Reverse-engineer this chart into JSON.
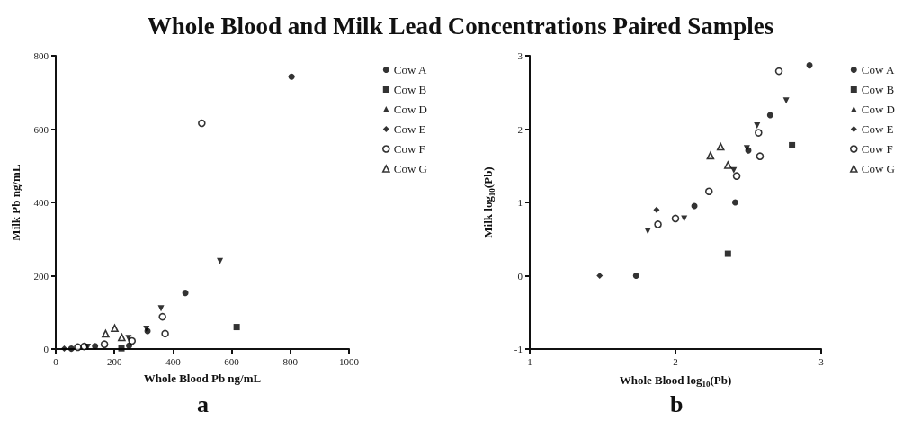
{
  "chart_data": [
    {
      "type": "scatter",
      "title": "Whole Blood and Milk Lead Concentrations Paired Samples",
      "xlabel": "Whole Blood Pb ng/mL",
      "ylabel": "Milk Pb ng/mL",
      "annotations": [
        "a"
      ],
      "xlim": [
        0,
        1000
      ],
      "xticks": [
        0,
        200,
        400,
        600,
        800,
        1000
      ],
      "ylim": [
        0,
        800
      ],
      "yticks": [
        0,
        200,
        400,
        600,
        800
      ],
      "grid": false,
      "legend": "right",
      "series": [
        {
          "name": "Cow A",
          "color": "#000000",
          "marker": "circle",
          "x": [
            804,
            442,
            313,
            250,
            134,
            53
          ],
          "values": [
            743,
            153,
            49,
            9,
            8,
            1
          ]
        },
        {
          "name": "Cow B",
          "color": "#000000",
          "marker": "square",
          "x": [
            617,
            224
          ],
          "values": [
            60,
            2
          ]
        },
        {
          "name": "Cow D",
          "color": "#000000",
          "marker": "triangle-down",
          "x": [
            560,
            359,
            309,
            248,
            109
          ],
          "values": [
            240,
            111,
            55,
            30,
            6
          ]
        },
        {
          "name": "Cow E",
          "color": "#000000",
          "marker": "diamond",
          "x": [
            29
          ],
          "values": [
            1
          ]
        },
        {
          "name": "Cow F",
          "color": "#000000",
          "marker": "circle-open",
          "x": [
            498,
            364,
            373,
            260,
            166,
            97,
            75
          ],
          "values": [
            616,
            88,
            42,
            22,
            13,
            7,
            5
          ]
        },
        {
          "name": "Cow G",
          "color": "#000000",
          "marker": "triangle-open",
          "x": [
            170,
            201,
            225
          ],
          "values": [
            42,
            57,
            32
          ]
        }
      ]
    },
    {
      "type": "scatter",
      "xlabel": "Whole Blood log$_{10}$(Pb)",
      "ylabel": "Milk log$_{10}$(Pb)",
      "annotations": [
        "b"
      ],
      "xlim": [
        1,
        3
      ],
      "xticks": [
        1,
        2,
        3
      ],
      "ylim": [
        -1,
        3
      ],
      "yticks": [
        -1,
        0,
        1,
        2,
        3
      ],
      "grid": false,
      "legend": "right",
      "series": [
        {
          "name": "Cow A",
          "color": "#000000",
          "marker": "circle",
          "x": [
            1.73,
            2.13,
            2.41,
            2.5,
            2.65,
            2.92
          ],
          "values": [
            0,
            0.95,
            1.0,
            1.71,
            2.19,
            2.87
          ]
        },
        {
          "name": "Cow B",
          "color": "#000000",
          "marker": "square",
          "x": [
            2.36,
            2.8
          ],
          "values": [
            0.3,
            1.78
          ]
        },
        {
          "name": "Cow D",
          "color": "#000000",
          "marker": "triangle-down",
          "x": [
            1.81,
            2.06,
            2.4,
            2.49,
            2.56,
            2.76
          ],
          "values": [
            0.61,
            0.78,
            1.44,
            1.74,
            2.05,
            2.39
          ]
        },
        {
          "name": "Cow E",
          "color": "#000000",
          "marker": "diamond",
          "x": [
            1.48,
            1.87
          ],
          "values": [
            0,
            0.9
          ]
        },
        {
          "name": "Cow F",
          "color": "#000000",
          "marker": "circle-open",
          "x": [
            1.88,
            2.0,
            2.23,
            2.42,
            2.57,
            2.58,
            2.71
          ],
          "values": [
            0.7,
            0.78,
            1.15,
            1.36,
            1.95,
            1.63,
            2.79
          ]
        },
        {
          "name": "Cow G",
          "color": "#000000",
          "marker": "triangle-open",
          "x": [
            2.24,
            2.31,
            2.36
          ],
          "values": [
            1.64,
            1.76,
            1.51
          ]
        }
      ]
    }
  ]
}
